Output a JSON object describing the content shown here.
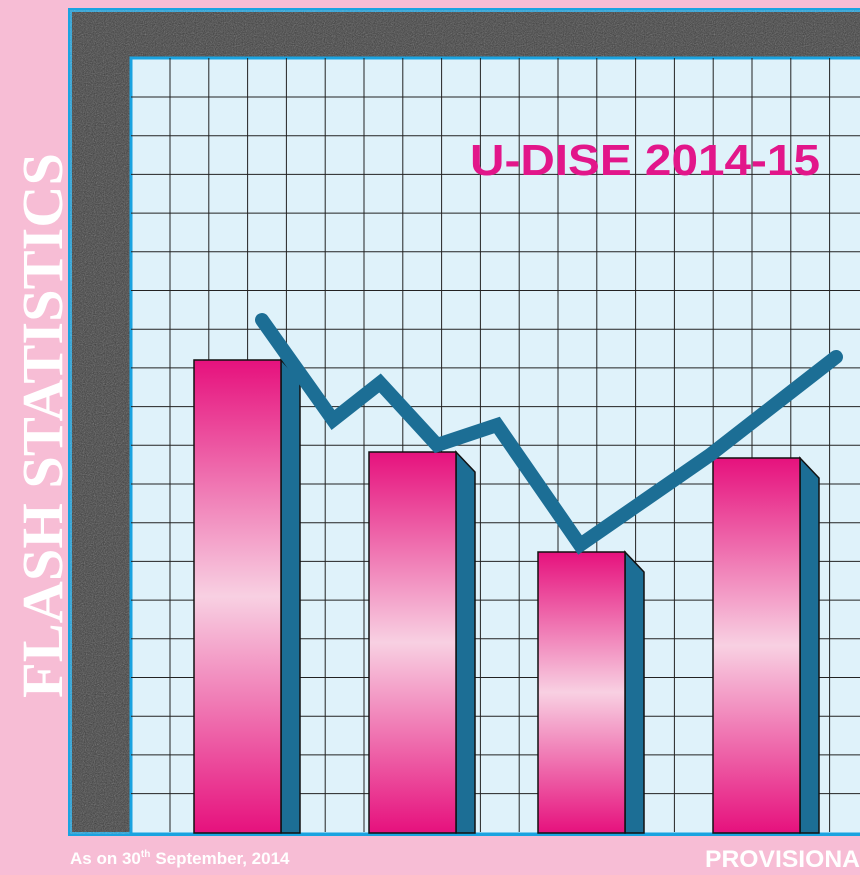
{
  "side_title": "FLASH STATISTICS",
  "header": {
    "title": "U-DISE 2014-15"
  },
  "footer": {
    "date": {
      "prefix": "As on 30",
      "superscript": "th",
      "suffix": "September, 2014"
    },
    "status": "PROVISIONA"
  }
}
